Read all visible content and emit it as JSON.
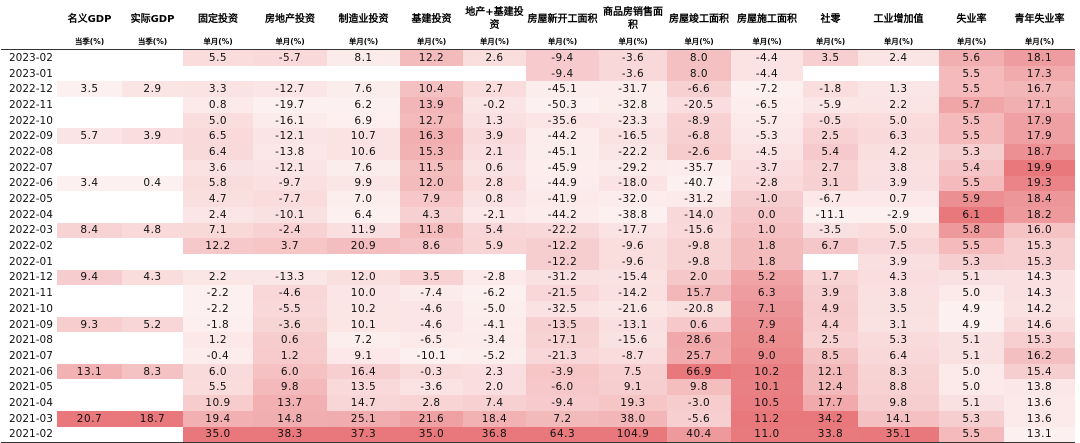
{
  "headers": [
    "名义GDP",
    "实际GDP",
    "固定投资",
    "房地产投资",
    "制造业投资",
    "基建投资",
    "地产+基建投资",
    "房屋新开工面积",
    "商品房销售面积",
    "房屋竣工面积",
    "房屋施工面积",
    "社零",
    "工业增加值",
    "失业率",
    "青年失业率"
  ],
  "units": [
    "当季(%)",
    "当季(%)",
    "单月(%)",
    "单月(%)",
    "单月(%)",
    "单月(%)",
    "单月(%)",
    "单月(%)",
    "单月(%)",
    "单月(%)",
    "单月(%)",
    "单月(%)",
    "单月(%)",
    "单月(%)",
    "单月(%)"
  ],
  "rows": [
    {
      "date": "2023-02",
      "v": [
        "",
        "",
        "5.5",
        "-5.7",
        "8.1",
        "12.2",
        "2.6",
        "-9.4",
        "-3.6",
        "8.0",
        "-4.4",
        "3.5",
        "2.4",
        "5.6",
        "18.1"
      ]
    },
    {
      "date": "2023-01",
      "v": [
        "",
        "",
        "",
        "",
        "",
        "",
        "",
        "-9.4",
        "-3.6",
        "8.0",
        "-4.4",
        "",
        "",
        "5.5",
        "17.3"
      ]
    },
    {
      "date": "2022-12",
      "v": [
        "3.5",
        "2.9",
        "3.3",
        "-12.7",
        "7.6",
        "10.4",
        "2.7",
        "-45.1",
        "-31.7",
        "-6.6",
        "-7.2",
        "-1.8",
        "1.3",
        "5.5",
        "16.7"
      ]
    },
    {
      "date": "2022-11",
      "v": [
        "",
        "",
        "0.8",
        "-19.7",
        "6.2",
        "13.9",
        "-0.2",
        "-50.3",
        "-32.8",
        "-20.5",
        "-6.5",
        "-5.9",
        "2.2",
        "5.7",
        "17.1"
      ]
    },
    {
      "date": "2022-10",
      "v": [
        "",
        "",
        "5.0",
        "-16.1",
        "6.9",
        "12.7",
        "1.3",
        "-35.6",
        "-23.3",
        "-8.9",
        "-5.7",
        "-0.5",
        "5.0",
        "5.5",
        "17.9"
      ]
    },
    {
      "date": "2022-09",
      "v": [
        "5.7",
        "3.9",
        "6.5",
        "-12.1",
        "10.7",
        "16.3",
        "3.9",
        "-44.2",
        "-16.5",
        "-6.8",
        "-5.3",
        "2.5",
        "6.3",
        "5.5",
        "17.9"
      ]
    },
    {
      "date": "2022-08",
      "v": [
        "",
        "",
        "6.4",
        "-13.8",
        "10.6",
        "15.3",
        "2.1",
        "-45.1",
        "-22.2",
        "-2.6",
        "-4.5",
        "5.4",
        "4.2",
        "5.3",
        "18.7"
      ]
    },
    {
      "date": "2022-07",
      "v": [
        "",
        "",
        "3.6",
        "-12.1",
        "7.6",
        "11.5",
        "0.6",
        "-45.9",
        "-29.2",
        "-35.7",
        "-3.7",
        "2.7",
        "3.8",
        "5.4",
        "19.9"
      ]
    },
    {
      "date": "2022-06",
      "v": [
        "3.4",
        "0.4",
        "5.8",
        "-9.7",
        "9.9",
        "12.0",
        "2.8",
        "-44.9",
        "-18.0",
        "-40.7",
        "-2.8",
        "3.1",
        "3.9",
        "5.5",
        "19.3"
      ]
    },
    {
      "date": "2022-05",
      "v": [
        "",
        "",
        "4.7",
        "-7.7",
        "7.0",
        "7.9",
        "0.8",
        "-41.9",
        "-32.0",
        "-31.2",
        "-1.0",
        "-6.7",
        "0.7",
        "5.9",
        "18.4"
      ]
    },
    {
      "date": "2022-04",
      "v": [
        "",
        "",
        "2.4",
        "-10.1",
        "6.4",
        "4.3",
        "-2.1",
        "-44.2",
        "-38.8",
        "-14.0",
        "0.0",
        "-11.1",
        "-2.9",
        "6.1",
        "18.2"
      ]
    },
    {
      "date": "2022-03",
      "v": [
        "8.4",
        "4.8",
        "7.1",
        "-2.4",
        "11.9",
        "11.8",
        "5.4",
        "-22.2",
        "-17.7",
        "-15.6",
        "1.0",
        "-3.5",
        "5.0",
        "5.8",
        "16.0"
      ]
    },
    {
      "date": "2022-02",
      "v": [
        "",
        "",
        "12.2",
        "3.7",
        "20.9",
        "8.6",
        "5.9",
        "-12.2",
        "-9.6",
        "-9.8",
        "1.8",
        "6.7",
        "7.5",
        "5.5",
        "15.3"
      ]
    },
    {
      "date": "2022-01",
      "v": [
        "",
        "",
        "",
        "",
        "",
        "",
        "",
        "-12.2",
        "-9.6",
        "-9.8",
        "1.8",
        "",
        "3.9",
        "5.3",
        "15.3"
      ]
    },
    {
      "date": "2021-12",
      "v": [
        "9.4",
        "4.3",
        "2.2",
        "-13.3",
        "12.0",
        "3.5",
        "-2.8",
        "-31.2",
        "-15.4",
        "2.0",
        "5.2",
        "1.7",
        "4.3",
        "5.1",
        "14.3"
      ]
    },
    {
      "date": "2021-11",
      "v": [
        "",
        "",
        "-2.2",
        "-4.6",
        "10.0",
        "-7.4",
        "-6.2",
        "-21.5",
        "-14.2",
        "15.7",
        "6.3",
        "3.9",
        "3.8",
        "5.0",
        "14.3"
      ]
    },
    {
      "date": "2021-10",
      "v": [
        "",
        "",
        "-2.2",
        "-5.5",
        "10.2",
        "-4.6",
        "-5.0",
        "-32.5",
        "-21.6",
        "-20.8",
        "7.1",
        "4.9",
        "3.5",
        "4.9",
        "14.2"
      ]
    },
    {
      "date": "2021-09",
      "v": [
        "9.3",
        "5.2",
        "-1.8",
        "-3.6",
        "10.1",
        "-4.6",
        "-4.1",
        "-13.5",
        "-13.1",
        "0.6",
        "7.9",
        "4.4",
        "3.1",
        "4.9",
        "14.6"
      ]
    },
    {
      "date": "2021-08",
      "v": [
        "",
        "",
        "1.2",
        "0.6",
        "7.2",
        "-6.5",
        "-3.4",
        "-17.1",
        "-15.6",
        "28.6",
        "8.4",
        "2.5",
        "5.3",
        "5.1",
        "15.3"
      ]
    },
    {
      "date": "2021-07",
      "v": [
        "",
        "",
        "-0.4",
        "1.2",
        "9.1",
        "-10.1",
        "-5.2",
        "-21.3",
        "-8.7",
        "25.7",
        "9.0",
        "8.5",
        "6.4",
        "5.1",
        "16.2"
      ]
    },
    {
      "date": "2021-06",
      "v": [
        "13.1",
        "8.3",
        "6.0",
        "6.0",
        "16.4",
        "-0.3",
        "2.3",
        "-3.9",
        "7.5",
        "66.9",
        "10.2",
        "12.1",
        "8.3",
        "5.0",
        "15.4"
      ]
    },
    {
      "date": "2021-05",
      "v": [
        "",
        "",
        "5.5",
        "9.8",
        "13.5",
        "-3.6",
        "2.0",
        "-6.0",
        "9.1",
        "9.8",
        "10.1",
        "12.4",
        "8.8",
        "5.0",
        "13.8"
      ]
    },
    {
      "date": "2021-04",
      "v": [
        "",
        "",
        "10.9",
        "13.7",
        "14.7",
        "2.8",
        "7.4",
        "-9.4",
        "19.3",
        "-3.0",
        "10.5",
        "17.7",
        "9.8",
        "5.1",
        "13.6"
      ]
    },
    {
      "date": "2021-03",
      "v": [
        "20.7",
        "18.7",
        "19.4",
        "14.8",
        "25.1",
        "21.6",
        "18.4",
        "7.2",
        "38.0",
        "-5.6",
        "11.2",
        "34.2",
        "14.1",
        "5.3",
        "13.6"
      ]
    },
    {
      "date": "2021-02",
      "v": [
        "",
        "",
        "35.0",
        "38.3",
        "37.3",
        "35.0",
        "36.8",
        "64.3",
        "104.9",
        "40.4",
        "11.0",
        "33.8",
        "35.1",
        "5.5",
        "13.1"
      ]
    }
  ],
  "colors": {
    "base": "#ffffff",
    "hot": "#e8787c",
    "pale": "#fdf0f0"
  }
}
